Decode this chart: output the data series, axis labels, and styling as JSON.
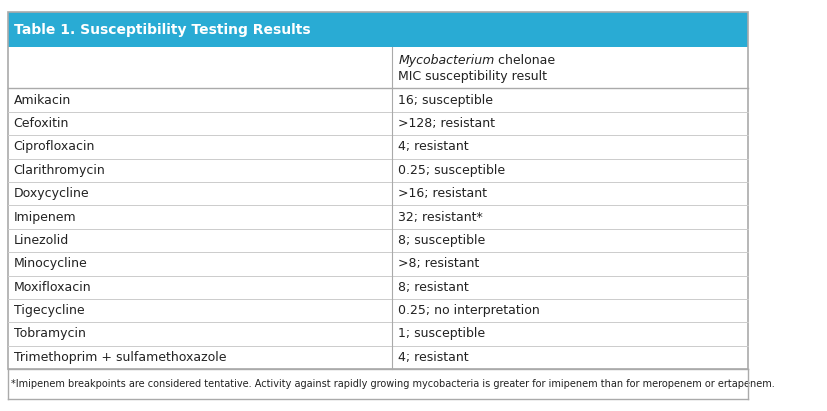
{
  "title": "Table 1. Susceptibility Testing Results",
  "title_bg_color": "#29ABD4",
  "title_text_color": "#FFFFFF",
  "header_col1": "",
  "header_col2_line1": "Mycobacterium chelonae",
  "header_col2_line2": "MIC susceptibility result",
  "rows": [
    [
      "Amikacin",
      "16; susceptible"
    ],
    [
      "Cefoxitin",
      ">128; resistant"
    ],
    [
      "Ciprofloxacin",
      "4; resistant"
    ],
    [
      "Clarithromycin",
      "0.25; susceptible"
    ],
    [
      "Doxycycline",
      ">16; resistant"
    ],
    [
      "Imipenem",
      "32; resistant*"
    ],
    [
      "Linezolid",
      "8; susceptible"
    ],
    [
      "Minocycline",
      ">8; resistant"
    ],
    [
      "Moxifloxacin",
      "8; resistant"
    ],
    [
      "Tigecycline",
      "0.25; no interpretation"
    ],
    [
      "Tobramycin",
      "1; susceptible"
    ],
    [
      "Trimethoprim + sulfamethoxazole",
      "4; resistant"
    ]
  ],
  "footnote": "*Imipenem breakpoints are considered tentative. Activity against rapidly growing mycobacteria is greater for imipenem than for meropenem or ertapenem.",
  "col_split": 0.52,
  "border_color": "#AAAAAA",
  "row_line_color": "#CCCCCC",
  "bg_color_white": "#FFFFFF",
  "bg_color_light": "#F7F7F7",
  "text_color": "#222222",
  "font_size": 9,
  "header_font_size": 9,
  "title_font_size": 10
}
